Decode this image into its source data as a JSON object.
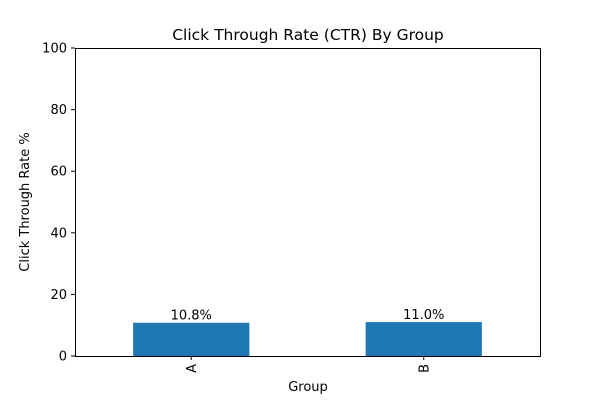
{
  "chart_data": {
    "type": "bar",
    "title": "Click Through Rate (CTR) By Group",
    "xlabel": "Group",
    "ylabel": "Click Through Rate %",
    "categories": [
      "A",
      "B"
    ],
    "values": [
      10.8,
      11.0
    ],
    "data_labels": [
      "10.8%",
      "11.0%"
    ],
    "ylim": [
      0,
      100
    ],
    "yticks": [
      0,
      20,
      40,
      60,
      80,
      100
    ],
    "grid": false,
    "bar_color": "#1f77b4",
    "x_tick_rotation": "vertical"
  }
}
